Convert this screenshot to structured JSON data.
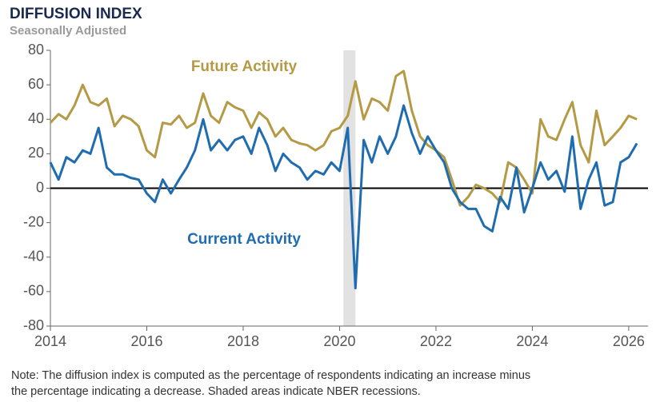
{
  "chart_data": {
    "type": "line",
    "title": "DIFFUSION INDEX",
    "subtitle": "Seasonally Adjusted",
    "note": [
      "Note: The diffusion index is computed as the percentage of respondents indicating an increase minus",
      "the percentage indicating a decrease. Shaded areas indicate NBER recessions."
    ],
    "x": [
      2014,
      2014.17,
      2014.33,
      2014.5,
      2014.67,
      2014.83,
      2015,
      2015.17,
      2015.33,
      2015.5,
      2015.67,
      2015.83,
      2016,
      2016.17,
      2016.33,
      2016.5,
      2016.67,
      2016.83,
      2017,
      2017.17,
      2017.33,
      2017.5,
      2017.67,
      2017.83,
      2018,
      2018.17,
      2018.33,
      2018.5,
      2018.67,
      2018.83,
      2019,
      2019.17,
      2019.33,
      2019.5,
      2019.67,
      2019.83,
      2020,
      2020.17,
      2020.33,
      2020.5,
      2020.67,
      2020.83,
      2021,
      2021.17,
      2021.33,
      2021.5,
      2021.67,
      2021.83,
      2022,
      2022.17,
      2022.33,
      2022.5,
      2022.67,
      2022.83,
      2023,
      2023.17,
      2023.33,
      2023.5,
      2023.67,
      2023.83,
      2024,
      2024.17,
      2024.33,
      2024.5,
      2024.67,
      2024.83,
      2025,
      2025.17,
      2025.33,
      2025.5,
      2025.67,
      2025.83,
      2026,
      2026.17
    ],
    "series": [
      {
        "name": "Future Activity",
        "color": "#b59a45",
        "values": [
          38,
          43,
          40,
          48,
          60,
          50,
          48,
          52,
          36,
          42,
          40,
          36,
          22,
          18,
          38,
          37,
          42,
          35,
          38,
          55,
          42,
          38,
          50,
          47,
          45,
          35,
          44,
          40,
          30,
          35,
          28,
          26,
          25,
          22,
          25,
          33,
          35,
          42,
          62,
          40,
          52,
          50,
          45,
          65,
          68,
          45,
          30,
          25,
          22,
          18,
          5,
          -10,
          -5,
          2,
          0,
          -3,
          -8,
          15,
          12,
          5,
          -3,
          40,
          30,
          28,
          40,
          50,
          25,
          15,
          45,
          25,
          30,
          35,
          42,
          40
        ]
      },
      {
        "name": "Current Activity",
        "color": "#1f6cb0",
        "values": [
          15,
          5,
          18,
          15,
          22,
          20,
          35,
          12,
          8,
          8,
          6,
          5,
          -3,
          -8,
          5,
          -3,
          5,
          12,
          22,
          40,
          22,
          28,
          22,
          28,
          30,
          20,
          35,
          25,
          10,
          20,
          15,
          12,
          5,
          10,
          8,
          15,
          10,
          35,
          -58,
          28,
          15,
          30,
          20,
          30,
          48,
          32,
          20,
          30,
          22,
          15,
          0,
          -8,
          -12,
          -12,
          -22,
          -25,
          -5,
          -12,
          12,
          -14,
          0,
          15,
          5,
          10,
          -2,
          30,
          -12,
          5,
          15,
          -10,
          -8,
          15,
          18,
          26
        ]
      }
    ],
    "recessions": [
      [
        2020.08,
        2020.33
      ]
    ],
    "xlim": [
      2014,
      2026.4
    ],
    "xticks": [
      2014,
      2016,
      2018,
      2020,
      2022,
      2024,
      2026
    ],
    "ylim": [
      -80,
      80
    ],
    "yticks": [
      -80,
      -60,
      -40,
      -20,
      0,
      20,
      40,
      60,
      80
    ],
    "zero_line": true,
    "grid": false
  }
}
